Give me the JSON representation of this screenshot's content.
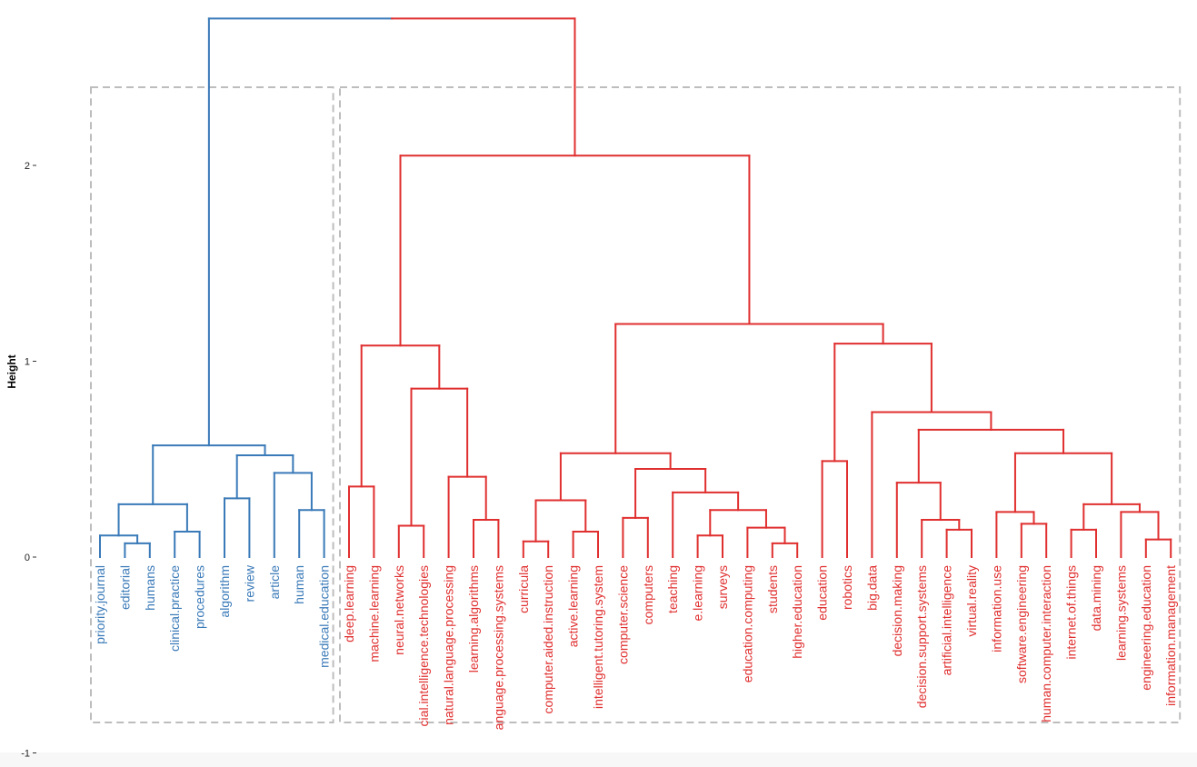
{
  "chart_data": {
    "type": "dendrogram",
    "title": "",
    "xlabel": "",
    "ylabel": "Height",
    "ylim": [
      -1,
      2.75
    ],
    "y_ticks": [
      {
        "value": 2,
        "label": "2"
      },
      {
        "value": 1,
        "label": "1"
      },
      {
        "value": 0,
        "label": "0"
      },
      {
        "value": -1,
        "label": "-1"
      }
    ],
    "cluster_colors": [
      "#3a7ab8",
      "#e02f2f"
    ],
    "leaves": [
      {
        "label": "priority.journal",
        "cluster": 0
      },
      {
        "label": "editorial",
        "cluster": 0
      },
      {
        "label": "humans",
        "cluster": 0
      },
      {
        "label": "clinical.practice",
        "cluster": 0
      },
      {
        "label": "procedures",
        "cluster": 0
      },
      {
        "label": "algorithm",
        "cluster": 0
      },
      {
        "label": "review",
        "cluster": 0
      },
      {
        "label": "article",
        "cluster": 0
      },
      {
        "label": "human",
        "cluster": 0
      },
      {
        "label": "medical.education",
        "cluster": 0
      },
      {
        "label": "deep.learning",
        "cluster": 1
      },
      {
        "label": "machine.learning",
        "cluster": 1
      },
      {
        "label": "neural.networks",
        "cluster": 1
      },
      {
        "label": "cial.intelligence.technologies",
        "cluster": 1
      },
      {
        "label": "natural.language.processing",
        "cluster": 1
      },
      {
        "label": "learning.algorithms",
        "cluster": 1
      },
      {
        "label": "anguage.processing.systems",
        "cluster": 1
      },
      {
        "label": "curricula",
        "cluster": 1
      },
      {
        "label": "computer.aided.instruction",
        "cluster": 1
      },
      {
        "label": "active.learning",
        "cluster": 1
      },
      {
        "label": "intelligent.tutoring.system",
        "cluster": 1
      },
      {
        "label": "computer.science",
        "cluster": 1
      },
      {
        "label": "computers",
        "cluster": 1
      },
      {
        "label": "teaching",
        "cluster": 1
      },
      {
        "label": "e.learning",
        "cluster": 1
      },
      {
        "label": "surveys",
        "cluster": 1
      },
      {
        "label": "education.computing",
        "cluster": 1
      },
      {
        "label": "students",
        "cluster": 1
      },
      {
        "label": "higher.education",
        "cluster": 1
      },
      {
        "label": "education",
        "cluster": 1
      },
      {
        "label": "robotics",
        "cluster": 1
      },
      {
        "label": "big.data",
        "cluster": 1
      },
      {
        "label": "decision.making",
        "cluster": 1
      },
      {
        "label": "decision.support.systems",
        "cluster": 1
      },
      {
        "label": "artificial.intelligence",
        "cluster": 1
      },
      {
        "label": "virtual.reality",
        "cluster": 1
      },
      {
        "label": "information.use",
        "cluster": 1
      },
      {
        "label": "software.engineering",
        "cluster": 1
      },
      {
        "label": "human.computer.interaction",
        "cluster": 1
      },
      {
        "label": "internet.of.things",
        "cluster": 1
      },
      {
        "label": "data.mining",
        "cluster": 1
      },
      {
        "label": "learning.systems",
        "cluster": 1
      },
      {
        "label": "engineering.education",
        "cluster": 1
      },
      {
        "label": "information.management",
        "cluster": 1
      }
    ],
    "tree": {
      "h": 2.75,
      "c": [
        {
          "h": 0.57,
          "c": [
            {
              "h": 0.27,
              "c": [
                {
                  "h": 0.11,
                  "c": [
                    0,
                    {
                      "h": 0.07,
                      "c": [
                        1,
                        2
                      ]
                    }
                  ]
                },
                {
                  "h": 0.13,
                  "c": [
                    3,
                    4
                  ]
                }
              ]
            },
            {
              "h": 0.52,
              "c": [
                {
                  "h": 0.3,
                  "c": [
                    5,
                    6
                  ]
                },
                {
                  "h": 0.43,
                  "c": [
                    7,
                    {
                      "h": 0.24,
                      "c": [
                        8,
                        9
                      ]
                    }
                  ]
                }
              ]
            }
          ]
        },
        {
          "h": 2.05,
          "c": [
            {
              "h": 1.08,
              "c": [
                {
                  "h": 0.36,
                  "c": [
                    10,
                    11
                  ]
                },
                {
                  "h": 0.86,
                  "c": [
                    {
                      "h": 0.16,
                      "c": [
                        12,
                        13
                      ]
                    },
                    {
                      "h": 0.41,
                      "c": [
                        14,
                        {
                          "h": 0.19,
                          "c": [
                            15,
                            16
                          ]
                        }
                      ]
                    }
                  ]
                }
              ]
            },
            {
              "h": 1.19,
              "c": [
                {
                  "h": 0.53,
                  "c": [
                    {
                      "h": 0.29,
                      "c": [
                        {
                          "h": 0.08,
                          "c": [
                            17,
                            18
                          ]
                        },
                        {
                          "h": 0.13,
                          "c": [
                            19,
                            20
                          ]
                        }
                      ]
                    },
                    {
                      "h": 0.45,
                      "c": [
                        {
                          "h": 0.2,
                          "c": [
                            21,
                            22
                          ]
                        },
                        {
                          "h": 0.33,
                          "c": [
                            23,
                            {
                              "h": 0.24,
                              "c": [
                                {
                                  "h": 0.11,
                                  "c": [
                                    24,
                                    25
                                  ]
                                },
                                {
                                  "h": 0.15,
                                  "c": [
                                    26,
                                    {
                                      "h": 0.07,
                                      "c": [
                                        27,
                                        28
                                      ]
                                    }
                                  ]
                                }
                              ]
                            }
                          ]
                        }
                      ]
                    }
                  ]
                },
                {
                  "h": 1.09,
                  "c": [
                    {
                      "h": 0.49,
                      "c": [
                        29,
                        30
                      ]
                    },
                    {
                      "h": 0.74,
                      "c": [
                        31,
                        {
                          "h": 0.65,
                          "c": [
                            {
                              "h": 0.38,
                              "c": [
                                32,
                                {
                                  "h": 0.19,
                                  "c": [
                                    33,
                                    {
                                      "h": 0.14,
                                      "c": [
                                        34,
                                        35
                                      ]
                                    }
                                  ]
                                }
                              ]
                            },
                            {
                              "h": 0.53,
                              "c": [
                                {
                                  "h": 0.23,
                                  "c": [
                                    36,
                                    {
                                      "h": 0.17,
                                      "c": [
                                        37,
                                        38
                                      ]
                                    }
                                  ]
                                },
                                {
                                  "h": 0.27,
                                  "c": [
                                    {
                                      "h": 0.14,
                                      "c": [
                                        39,
                                        40
                                      ]
                                    },
                                    {
                                      "h": 0.23,
                                      "c": [
                                        41,
                                        {
                                          "h": 0.09,
                                          "c": [
                                            42,
                                            43
                                          ]
                                        }
                                      ]
                                    }
                                  ]
                                }
                              ]
                            }
                          ]
                        }
                      ]
                    }
                  ]
                }
              ]
            }
          ]
        }
      ]
    }
  }
}
